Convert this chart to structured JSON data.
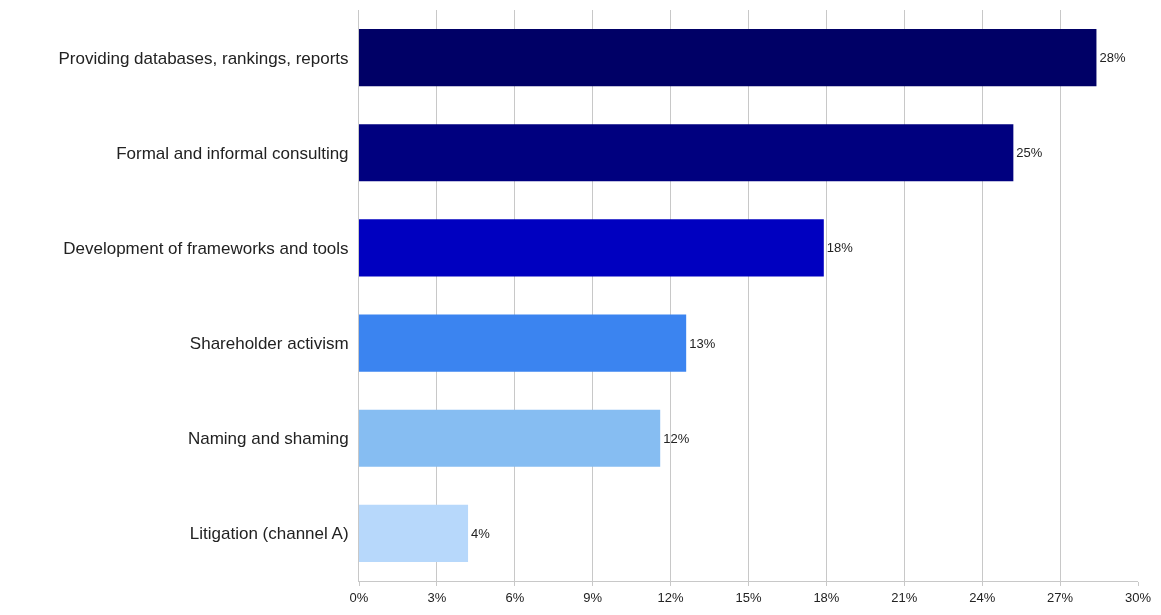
{
  "chart_data": {
    "type": "bar",
    "orientation": "horizontal",
    "categories": [
      "Providing databases, rankings, reports",
      "Formal and informal consulting",
      "Development of frameworks and tools",
      "Shareholder activism",
      "Naming and shaming",
      "Litigation (channel A)"
    ],
    "values": [
      28.4,
      25.2,
      17.9,
      12.6,
      11.6,
      4.2
    ],
    "value_labels": [
      "28%",
      "25%",
      "18%",
      "13%",
      "12%",
      "4%"
    ],
    "colors": [
      "#000066",
      "#00007f",
      "#0000c0",
      "#3b84f0",
      "#86bdf2",
      "#b7d8fb"
    ],
    "xlim": [
      0,
      30
    ],
    "xticks": [
      {
        "value": 0,
        "label": "0%"
      },
      {
        "value": 3,
        "label": "3%"
      },
      {
        "value": 6,
        "label": "6%"
      },
      {
        "value": 9,
        "label": "9%"
      },
      {
        "value": 12,
        "label": "12%"
      },
      {
        "value": 15,
        "label": "15%"
      },
      {
        "value": 18,
        "label": "18%"
      },
      {
        "value": 21,
        "label": "21%"
      },
      {
        "value": 24,
        "label": "24%"
      },
      {
        "value": 27,
        "label": "27%"
      },
      {
        "value": 30,
        "label": "30%"
      }
    ],
    "grid": "x",
    "legend": false
  }
}
